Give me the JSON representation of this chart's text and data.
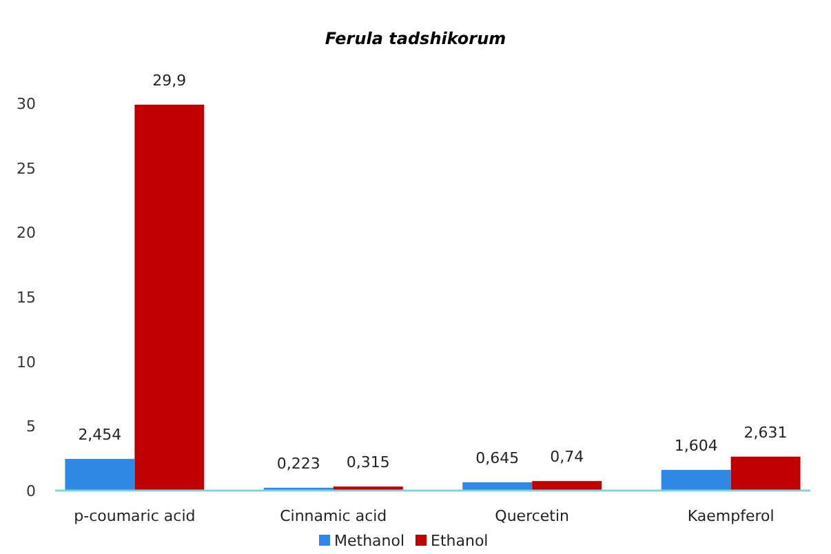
{
  "chart_data": {
    "type": "bar",
    "title": "Ferula tadshikorum",
    "categories": [
      "p-coumaric acid",
      "Cinnamic acid",
      "Quercetin",
      "Kaempferol"
    ],
    "series": [
      {
        "name": "Methanol",
        "color": "#2f87e6",
        "values": [
          2.454,
          0.223,
          0.645,
          1.604
        ],
        "value_labels": [
          "2,454",
          "0,223",
          "0,645",
          "1,604"
        ]
      },
      {
        "name": "Ethanol",
        "color": "#c00000",
        "values": [
          29.9,
          0.315,
          0.74,
          2.631
        ],
        "value_labels": [
          "29,9",
          "0,315",
          "0,74",
          "2,631"
        ]
      }
    ],
    "ylim": [
      0,
      30
    ],
    "yticks": [
      0,
      5,
      10,
      15,
      20,
      25,
      30
    ],
    "grid": false,
    "legend": "bottom"
  }
}
